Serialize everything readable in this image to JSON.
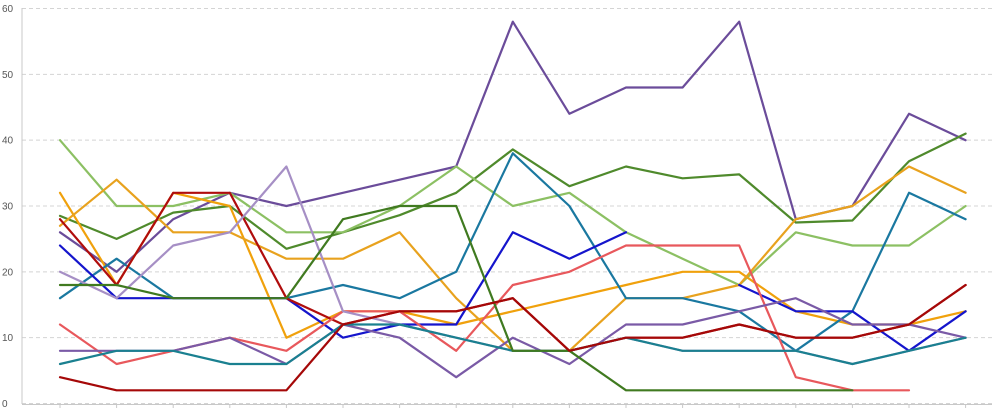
{
  "chart_data": {
    "type": "line",
    "title": "",
    "xlabel": "",
    "ylabel": "",
    "ylim": [
      0,
      60
    ],
    "yticks": [
      0,
      10,
      20,
      30,
      40,
      50,
      60
    ],
    "grid": "horizontal dashed",
    "legend": "none",
    "x": [
      0,
      1,
      2,
      3,
      4,
      5,
      6,
      7,
      8,
      9,
      10,
      11,
      12,
      13,
      14,
      15,
      16
    ],
    "series": [
      {
        "color": "#6b4c9a",
        "values": [
          26,
          20,
          28,
          32,
          30,
          32,
          34,
          36,
          58,
          44,
          48,
          48,
          58,
          28,
          30,
          44,
          40
        ]
      },
      {
        "color": "#4f8a2c",
        "values": [
          28.5,
          25,
          29,
          30,
          23.5,
          26,
          28.6,
          32,
          38.6,
          33,
          36,
          34.2,
          34.8,
          27.5,
          27.8,
          36.8,
          41
        ]
      },
      {
        "color": "#8cc063",
        "values": [
          40,
          30,
          30,
          32,
          26,
          26,
          30,
          36,
          30,
          32,
          26,
          22,
          18,
          26,
          24,
          24,
          30
        ]
      },
      {
        "color": "#f0a10c",
        "values": [
          32,
          18,
          32,
          30,
          10,
          14,
          14,
          12,
          14,
          16,
          18,
          20,
          20,
          14,
          12,
          12,
          14
        ]
      },
      {
        "color": "#e8a21e",
        "values": [
          27,
          34,
          26,
          26,
          22,
          22,
          26,
          16,
          8,
          8,
          16,
          16,
          18,
          28,
          30,
          36,
          32
        ]
      },
      {
        "color": "#1a78a0",
        "values": [
          16,
          22,
          16,
          16,
          16,
          18,
          16,
          20,
          38,
          30,
          16,
          16,
          14,
          8,
          14,
          32,
          28
        ]
      },
      {
        "color": "#1515cc",
        "values": [
          24,
          16,
          16,
          16,
          16,
          10,
          12,
          12,
          26,
          22,
          26,
          null,
          18,
          14,
          14,
          8,
          14
        ]
      },
      {
        "color": "#b00d0d",
        "values": [
          28,
          18,
          32,
          32,
          16,
          12,
          14,
          14,
          16,
          8,
          10,
          10,
          12,
          10,
          10,
          12,
          18
        ]
      },
      {
        "color": "#e8585c",
        "values": [
          12,
          6,
          8,
          10,
          8,
          14,
          14,
          8,
          18,
          20,
          24,
          24,
          24,
          4,
          2,
          2,
          null
        ]
      },
      {
        "color": "#a68fc5",
        "values": [
          20,
          16,
          24,
          26,
          36,
          14,
          12,
          10,
          8,
          8,
          10,
          8,
          8,
          8,
          6,
          8,
          10
        ]
      },
      {
        "color": "#7a5aa6",
        "values": [
          8,
          8,
          8,
          10,
          6,
          12,
          10,
          4,
          10,
          6,
          12,
          12,
          14,
          16,
          12,
          12,
          10
        ]
      },
      {
        "color": "#1a8090",
        "values": [
          6,
          8,
          8,
          6,
          6,
          12,
          12,
          10,
          8,
          8,
          10,
          8,
          8,
          8,
          6,
          8,
          10
        ]
      },
      {
        "color": "#407a20",
        "values": [
          18,
          18,
          16,
          16,
          16,
          28,
          30,
          30,
          8,
          8,
          2,
          2,
          2,
          2,
          2,
          null,
          null
        ]
      },
      {
        "color": "#a50808",
        "values": [
          4,
          2,
          2,
          2,
          2,
          12,
          14,
          14,
          16,
          8,
          10,
          10,
          12,
          10,
          10,
          12,
          18
        ]
      }
    ]
  }
}
